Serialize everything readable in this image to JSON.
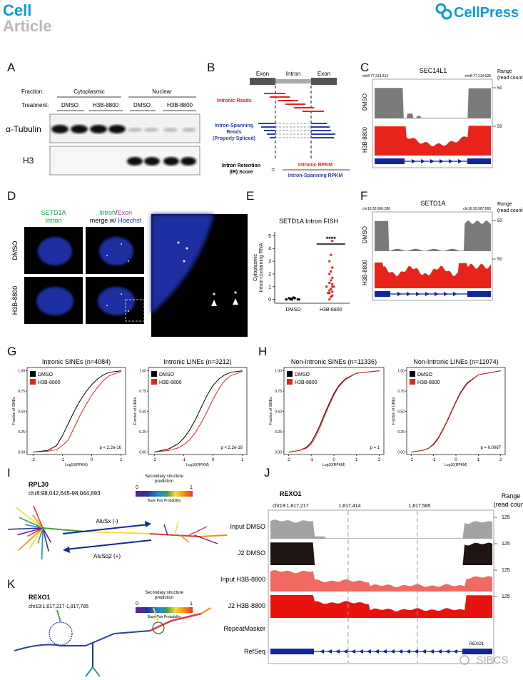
{
  "header": {
    "journal": "Cell",
    "article_type": "Article",
    "publisher": "CellPress"
  },
  "panel_A": {
    "label": "A",
    "fraction_label": "Fraction:",
    "treatment_label": "Treatment:",
    "fractions": [
      "Cytoplasmic",
      "Nuclear"
    ],
    "treatments": [
      "DMSO",
      "H3B-8800",
      "DMSO",
      "H3B-8800"
    ],
    "blots": [
      "α-Tubulin",
      "H3"
    ]
  },
  "panel_B": {
    "label": "B",
    "exon_left": "Exon",
    "intron": "Intron",
    "exon_right": "Exon",
    "intronic_reads": "Intronic Reads",
    "spanning_reads": [
      "Intron-Spanning",
      "Reads",
      "(Properly Spliced)"
    ],
    "score_label": [
      "Intron Retention",
      "(IR) Score"
    ],
    "equals": "=",
    "numerator": "Intronic RPKM",
    "denominator": "Intron-Spanning RPKM"
  },
  "panel_C": {
    "label": "C",
    "gene": "SEC14L1",
    "start": "chr8:77,213,314",
    "end": "chr8:77,214,026",
    "range": [
      "Range",
      "(read count)"
    ],
    "tracks": [
      {
        "name": "DMSO",
        "max": 50
      },
      {
        "name": "H3B-8800",
        "max": 50
      }
    ]
  },
  "panel_D": {
    "label": "D",
    "col1": [
      "SETD1A",
      "Intron"
    ],
    "col2_intron": "Intron",
    "col2_slash": "/",
    "col2_exon": "Exon",
    "col2_merge": "merge w/ ",
    "col2_hoechst": "Hoechst",
    "rows": [
      "DMSO",
      "H3B-8800"
    ]
  },
  "panel_E": {
    "label": "E"
  },
  "panel_F": {
    "label": "F",
    "gene": "SETD1A",
    "start": "chr16:30,966,286",
    "end": "chr16:30,967,060",
    "range": [
      "Range",
      "(read count)"
    ],
    "tracks": [
      {
        "name": "DMSO",
        "max": 50
      },
      {
        "name": "H3B-8800",
        "max": 50
      }
    ]
  },
  "panel_G": {
    "label": "G"
  },
  "panel_H": {
    "label": "H"
  },
  "panel_I": {
    "label": "I",
    "gene": "RPL30",
    "coordinates": "chr8:98,042,645-98,044,893",
    "legend_title": [
      "Secondary structure",
      "prediction"
    ],
    "legend_min": 0,
    "legend_max": 1,
    "legend_caption": "Base Pair Probability",
    "arrow_top": "AluSx (-)",
    "arrow_bottom": "AluSq2 (+)"
  },
  "panel_J": {
    "label": "J",
    "gene": "REXO1",
    "range": [
      "Range",
      "(read count)"
    ],
    "coordinates": [
      "chr19:1,817,217",
      "1,817,414",
      "1,817,585"
    ],
    "tracks": [
      {
        "name": "Input DMSO",
        "max": 125
      },
      {
        "name": "J2 DMSO",
        "max": 125
      },
      {
        "name": "Input H3B-8800",
        "max": 125
      },
      {
        "name": "J2 H3B-8800",
        "max": 125
      }
    ],
    "repeat_track": "RepeatMasker",
    "refseq_track": "RefSeq",
    "refseq_gene": "REXO1"
  },
  "panel_K": {
    "label": "K",
    "gene": "REXO1",
    "coordinates": "chr19:1,817,217-1,817,785",
    "legend_title": [
      "Secondary structure",
      "prediction"
    ],
    "legend_min": 0,
    "legend_max": 1,
    "legend_caption": "Base Pair Probability"
  },
  "watermark": "SIBCS",
  "chart_data": [
    {
      "type": "strip",
      "title": "SETD1A Intron FISH",
      "ylabel": [
        "Cytoplasmic",
        "Intron-containing RNA"
      ],
      "categories": [
        "DMSO",
        "H3B-8800"
      ],
      "colors": [
        "#000000",
        "#e8231a"
      ],
      "values": [
        [
          0,
          0,
          0,
          0,
          0,
          0,
          0.05,
          0.05,
          0.1,
          0.1,
          0.15
        ],
        [
          0,
          0.2,
          0.3,
          0.5,
          0.5,
          0.6,
          0.7,
          0.8,
          1,
          1,
          1,
          1.2,
          1.3,
          1.5,
          1.7,
          2,
          2.2,
          2.5,
          3,
          3.5,
          4.6
        ]
      ],
      "annotation": "****",
      "ylim": [
        -0.3,
        5.3
      ],
      "yticks": [
        0,
        1,
        2,
        3,
        4,
        5
      ]
    },
    {
      "type": "cdf",
      "title": "Intronic SINEs (n=4084)",
      "xlabel": "Log10(RPKM)",
      "ylabel": "Fraction of SINEs",
      "x": [
        -2,
        -1.5,
        -1.2,
        -1,
        -0.8,
        -0.6,
        -0.4,
        -0.2,
        0,
        0.2,
        0.4,
        0.6,
        1
      ],
      "series": [
        {
          "name": "DMSO",
          "color": "#000000",
          "values": [
            0,
            0.02,
            0.08,
            0.2,
            0.35,
            0.5,
            0.63,
            0.74,
            0.83,
            0.9,
            0.95,
            0.98,
            1
          ]
        },
        {
          "name": "H3B-8800",
          "color": "#e8231a",
          "values": [
            0,
            0.01,
            0.03,
            0.08,
            0.15,
            0.3,
            0.45,
            0.58,
            0.7,
            0.8,
            0.88,
            0.94,
            0.99
          ]
        }
      ],
      "xlim": [
        -2.2,
        1.15
      ],
      "xticks": [
        -2,
        -1,
        0,
        1
      ],
      "ylim": [
        -0.03,
        1.04
      ],
      "yticks": [
        {
          "value": 0,
          "label": "0.00"
        },
        {
          "value": 0.25,
          "label": "0.25"
        },
        {
          "value": 0.5,
          "label": "0.50"
        },
        {
          "value": 0.75,
          "label": "0.75"
        },
        {
          "value": 1,
          "label": "1.00"
        }
      ],
      "legend": "upper left",
      "annotation": "p < 2.2e-16"
    },
    {
      "type": "cdf",
      "title": "Intronic LINEs (n=3212)",
      "xlabel": "Log10(RPKM)",
      "ylabel": "Fraction of LINEs",
      "x": [
        -2,
        -1.5,
        -1.2,
        -1,
        -0.8,
        -0.6,
        -0.4,
        -0.2,
        0,
        0.2,
        0.4,
        0.6,
        1
      ],
      "series": [
        {
          "name": "DMSO",
          "color": "#000000",
          "values": [
            0,
            0.04,
            0.1,
            0.17,
            0.27,
            0.4,
            0.55,
            0.7,
            0.82,
            0.9,
            0.95,
            0.98,
            1
          ]
        },
        {
          "name": "H3B-8800",
          "color": "#e8231a",
          "values": [
            0,
            0.02,
            0.05,
            0.09,
            0.15,
            0.24,
            0.36,
            0.5,
            0.65,
            0.78,
            0.88,
            0.94,
            0.99
          ]
        }
      ],
      "xlim": [
        -2.2,
        1.15
      ],
      "xticks": [
        -2,
        -1,
        0,
        1
      ],
      "ylim": [
        -0.03,
        1.04
      ],
      "yticks": [
        {
          "value": 0,
          "label": "0.00"
        },
        {
          "value": 0.25,
          "label": "0.25"
        },
        {
          "value": 0.5,
          "label": "0.50"
        },
        {
          "value": 0.75,
          "label": "0.75"
        },
        {
          "value": 1,
          "label": "1.00"
        }
      ],
      "legend": "upper left",
      "annotation": "p < 2.2e-16"
    },
    {
      "type": "cdf",
      "title": "Non-Intronic SINEs (n=11336)",
      "xlabel": "Log10(RPKM)",
      "ylabel": "Fraction of SINEs",
      "x": [
        -2,
        -1.5,
        -1.2,
        -1,
        -0.8,
        -0.6,
        -0.4,
        -0.2,
        0,
        0.2,
        0.5,
        1,
        2
      ],
      "series": [
        {
          "name": "DMSO",
          "color": "#000000",
          "values": [
            0,
            0.02,
            0.06,
            0.12,
            0.22,
            0.34,
            0.48,
            0.6,
            0.72,
            0.81,
            0.9,
            0.97,
            1
          ]
        },
        {
          "name": "H3B-8800",
          "color": "#e8231a",
          "values": [
            0,
            0.02,
            0.05,
            0.1,
            0.19,
            0.31,
            0.45,
            0.58,
            0.7,
            0.8,
            0.89,
            0.97,
            1
          ]
        }
      ],
      "xlim": [
        -2.2,
        2.2
      ],
      "xticks": [
        -2,
        -1,
        0,
        1,
        2
      ],
      "ylim": [
        -0.03,
        1.04
      ],
      "yticks": [
        {
          "value": 0,
          "label": "0.00"
        },
        {
          "value": 0.25,
          "label": "0.25"
        },
        {
          "value": 0.5,
          "label": "0.50"
        },
        {
          "value": 0.75,
          "label": "0.75"
        },
        {
          "value": 1,
          "label": "1.00"
        }
      ],
      "legend": "upper left",
      "annotation": "p = 1"
    },
    {
      "type": "cdf",
      "title": "Non-Intronic LINEs (n=11074)",
      "xlabel": "Log10(RPKM)",
      "ylabel": "Fraction of LINEs",
      "x": [
        -2,
        -1.5,
        -1.2,
        -1,
        -0.8,
        -0.6,
        -0.4,
        -0.2,
        0,
        0.2,
        0.5,
        1,
        2
      ],
      "series": [
        {
          "name": "DMSO",
          "color": "#000000",
          "values": [
            0,
            0.02,
            0.05,
            0.1,
            0.17,
            0.27,
            0.38,
            0.5,
            0.62,
            0.73,
            0.85,
            0.95,
            1
          ]
        },
        {
          "name": "H3B-8800",
          "color": "#e8231a",
          "values": [
            0,
            0.02,
            0.05,
            0.09,
            0.16,
            0.26,
            0.37,
            0.49,
            0.61,
            0.72,
            0.84,
            0.95,
            1
          ]
        }
      ],
      "xlim": [
        -2.2,
        2.2
      ],
      "xticks": [
        -2,
        -1,
        0,
        1,
        2
      ],
      "ylim": [
        -0.03,
        1.04
      ],
      "yticks": [
        {
          "value": 0,
          "label": "0.00"
        },
        {
          "value": 0.25,
          "label": "0.25"
        },
        {
          "value": 0.5,
          "label": "0.50"
        },
        {
          "value": 0.75,
          "label": "0.75"
        },
        {
          "value": 1,
          "label": "1.00"
        }
      ],
      "legend": "upper left",
      "annotation": "p = 0.0067"
    }
  ]
}
